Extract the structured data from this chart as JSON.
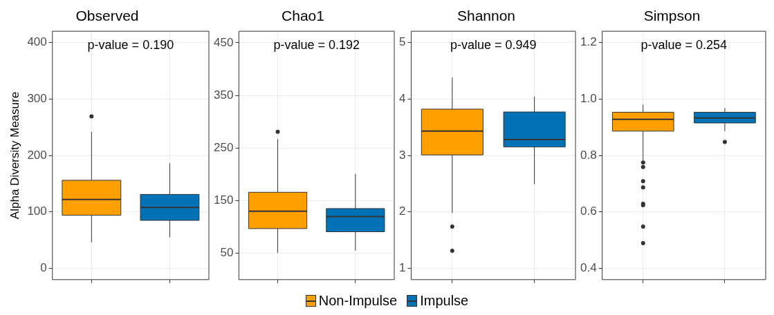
{
  "chart_data": [
    {
      "type": "box",
      "title": "Observed",
      "ylabel": "Alpha Diversity Measure",
      "categories": [
        null,
        null
      ],
      "ylim": [
        -20,
        420
      ],
      "yticks": [
        0,
        100,
        200,
        300,
        400
      ],
      "grid": true,
      "tick_labels": "y",
      "legend": "bottom",
      "annotations": [
        "p-value = 0.190"
      ],
      "series": [
        {
          "name": "Non-Impulse",
          "color": "#ff9f00",
          "boxes": [
            {
              "low": 46,
              "q1": 94,
              "median": 122,
              "q3": 156,
              "high": 242,
              "outliers": [
                269
              ]
            },
            null
          ]
        },
        {
          "name": "Impulse",
          "color": "#0072b5",
          "boxes": [
            null,
            {
              "low": 55,
              "q1": 85,
              "median": 108,
              "q3": 131,
              "high": 186
            }
          ]
        }
      ]
    },
    {
      "type": "box",
      "title": "Chao1",
      "categories": [
        null,
        null
      ],
      "ylim": [
        0,
        472
      ],
      "yticks": [
        50,
        150,
        250,
        350,
        450
      ],
      "grid": true,
      "tick_labels": "y",
      "annotations": [
        "p-value = 0.192"
      ],
      "series": [
        {
          "name": "Non-Impulse",
          "color": "#ff9f00",
          "boxes": [
            {
              "low": 51,
              "q1": 97,
              "median": 130,
              "q3": 166,
              "high": 267,
              "outliers": [
                281
              ]
            },
            null
          ]
        },
        {
          "name": "Impulse",
          "color": "#0072b5",
          "boxes": [
            null,
            {
              "low": 55,
              "q1": 91,
              "median": 120,
              "q3": 135,
              "high": 201
            }
          ]
        }
      ]
    },
    {
      "type": "box",
      "title": "Shannon",
      "categories": [
        null,
        null
      ],
      "ylim": [
        0.8,
        5.2
      ],
      "yticks": [
        1,
        2,
        3,
        4,
        5
      ],
      "grid": true,
      "tick_labels": "y",
      "annotations": [
        "p-value = 0.949"
      ],
      "series": [
        {
          "name": "Non-Impulse",
          "color": "#ff9f00",
          "boxes": [
            {
              "low": 1.98,
              "q1": 3.01,
              "median": 3.43,
              "q3": 3.82,
              "high": 4.38,
              "outliers": [
                1.74,
                1.31
              ]
            },
            null
          ]
        },
        {
          "name": "Impulse",
          "color": "#0072b5",
          "boxes": [
            null,
            {
              "low": 2.49,
              "q1": 3.15,
              "median": 3.28,
              "q3": 3.77,
              "high": 4.04
            }
          ]
        }
      ]
    },
    {
      "type": "box",
      "title": "Simpson",
      "categories": [
        null,
        null
      ],
      "ylim": [
        0.36,
        1.24
      ],
      "yticks": [
        {
          "value": 0.4,
          "label": "0.4"
        },
        {
          "value": 0.6,
          "label": "0.6"
        },
        {
          "value": 0.8,
          "label": "0.8"
        },
        {
          "value": 1,
          "label": "1.0"
        },
        {
          "value": 1.2,
          "label": "1.2"
        }
      ],
      "grid": true,
      "tick_labels": "y",
      "annotations": [
        "p-value = 0.254"
      ],
      "series": [
        {
          "name": "Non-Impulse",
          "color": "#ff9f00",
          "boxes": [
            {
              "low": 0.783,
              "q1": 0.886,
              "median": 0.928,
              "q3": 0.953,
              "high": 0.98,
              "outliers": [
                0.775,
                0.759,
                0.709,
                0.687,
                0.629,
                0.624,
                0.548,
                0.489
              ]
            },
            null
          ]
        },
        {
          "name": "Impulse",
          "color": "#0072b5",
          "boxes": [
            null,
            {
              "low": 0.886,
              "q1": 0.915,
              "median": 0.933,
              "q3": 0.953,
              "high": 0.968,
              "outliers": [
                0.848
              ]
            }
          ]
        }
      ]
    }
  ]
}
